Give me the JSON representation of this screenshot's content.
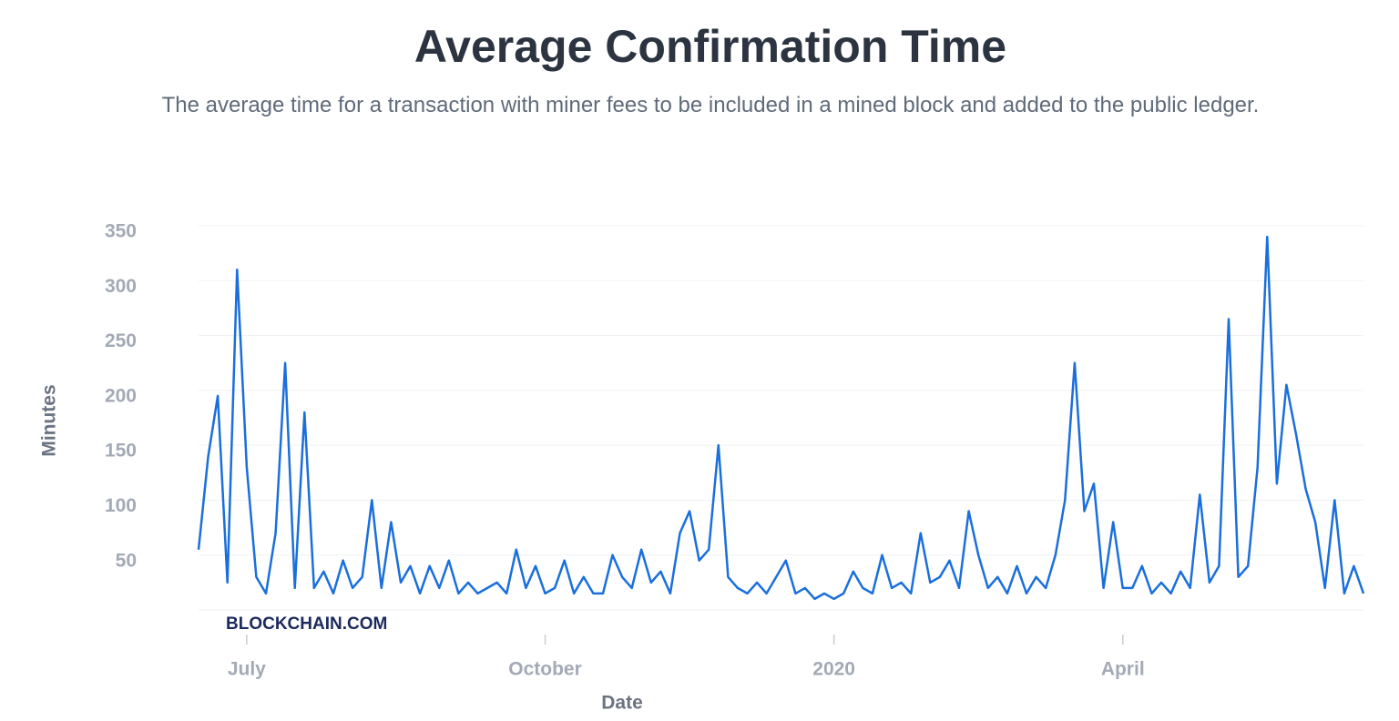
{
  "chart_data": {
    "type": "line",
    "title": "Average Confirmation Time",
    "subtitle": "The average time for a transaction with miner fees to be included in a mined block and added to the public ledger.",
    "x_label": "Date",
    "y_label": "Minutes",
    "watermark": "BLOCKCHAIN.COM",
    "color": "#1a6fdc",
    "grid": true,
    "ylim": [
      0,
      350
    ],
    "yticks": [
      50,
      100,
      150,
      200,
      250,
      300,
      350
    ],
    "categories": [
      null,
      null,
      null,
      null,
      null,
      "July",
      null,
      null,
      null,
      null,
      null,
      null,
      null,
      null,
      null,
      null,
      null,
      null,
      null,
      null,
      null,
      null,
      null,
      null,
      null,
      null,
      null,
      null,
      null,
      null,
      null,
      null,
      null,
      null,
      null,
      null,
      "October",
      null,
      null,
      null,
      null,
      null,
      null,
      null,
      null,
      null,
      null,
      null,
      null,
      null,
      null,
      null,
      null,
      null,
      null,
      null,
      null,
      null,
      null,
      null,
      null,
      null,
      null,
      null,
      null,
      null,
      "2020",
      null,
      null,
      null,
      null,
      null,
      null,
      null,
      null,
      null,
      null,
      null,
      null,
      null,
      null,
      null,
      null,
      null,
      null,
      null,
      null,
      null,
      null,
      null,
      null,
      null,
      null,
      null,
      null,
      null,
      "April",
      null,
      null,
      null,
      null,
      null,
      null,
      null,
      null,
      null,
      null,
      null,
      null,
      null,
      null,
      null,
      null,
      null,
      null,
      null,
      null,
      null,
      null,
      null,
      null,
      null
    ],
    "values": [
      55,
      140,
      195,
      25,
      310,
      130,
      30,
      15,
      70,
      225,
      20,
      180,
      20,
      35,
      15,
      45,
      20,
      30,
      100,
      20,
      80,
      25,
      40,
      15,
      40,
      20,
      45,
      15,
      25,
      15,
      20,
      25,
      15,
      55,
      20,
      40,
      15,
      20,
      45,
      15,
      30,
      15,
      15,
      50,
      30,
      20,
      55,
      25,
      35,
      15,
      70,
      90,
      45,
      55,
      150,
      30,
      20,
      15,
      25,
      15,
      30,
      45,
      15,
      20,
      10,
      15,
      10,
      15,
      35,
      20,
      15,
      50,
      20,
      25,
      15,
      70,
      25,
      30,
      45,
      20,
      90,
      50,
      20,
      30,
      15,
      40,
      15,
      30,
      20,
      50,
      100,
      225,
      90,
      115,
      20,
      80,
      20,
      20,
      40,
      15,
      25,
      15,
      35,
      20,
      105,
      25,
      40,
      265,
      30,
      40,
      130,
      340,
      115,
      205,
      160,
      110,
      80,
      20,
      100,
      15,
      40,
      15
    ]
  }
}
